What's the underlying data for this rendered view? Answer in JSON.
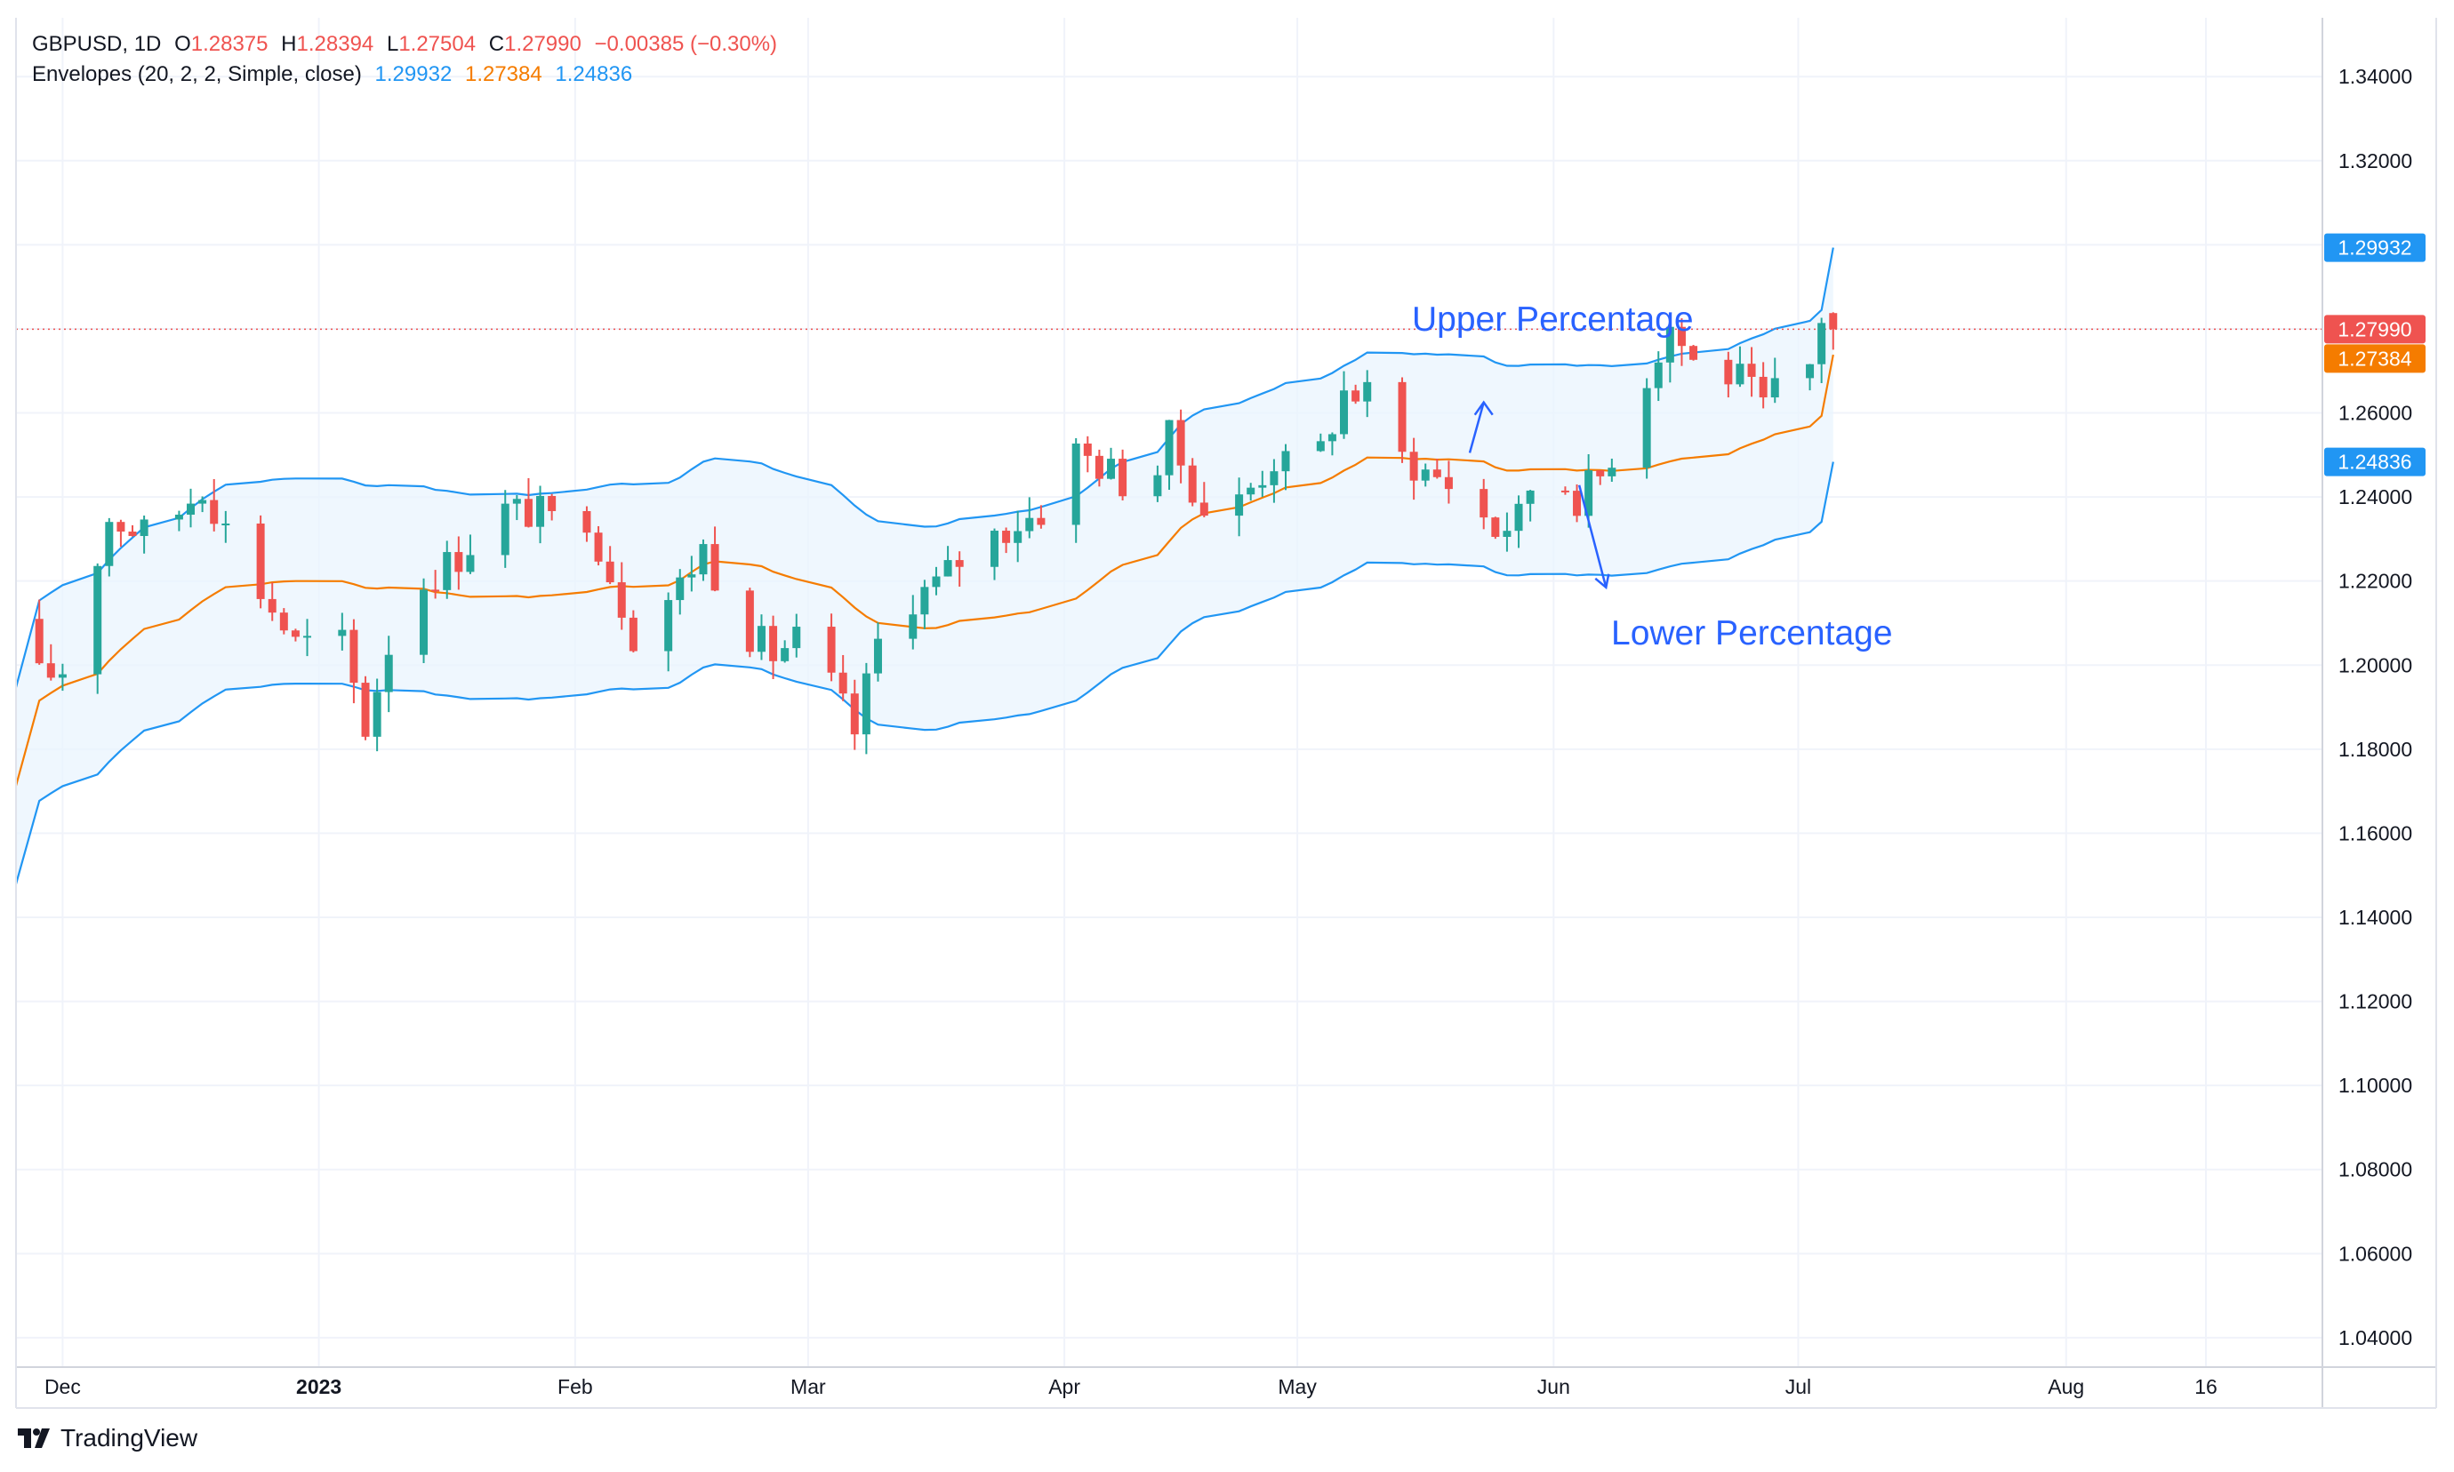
{
  "legend": {
    "symbol": "GBPUSD",
    "interval": "1D",
    "o_label": "O",
    "o": "1.28375",
    "h_label": "H",
    "h": "1.28394",
    "l_label": "L",
    "l": "1.27504",
    "c_label": "C",
    "c": "1.27990",
    "change": "−0.00385 (−0.30%)",
    "indicator": "Envelopes (20, 2, 2, Simple, close)",
    "upper": "1.29932",
    "mid": "1.27384",
    "lower": "1.24836"
  },
  "branding": {
    "name": "TradingView"
  },
  "colors": {
    "up": "#26a69a",
    "down": "#ef5350",
    "band": "#2196f3",
    "basis": "#f57c00",
    "fill": "#eaf4fd",
    "annotation": "#2962ff",
    "grid": "#f0f3fa",
    "text": "#131722"
  },
  "chart_data": {
    "type": "candlestick",
    "title": "GBPUSD, 1D",
    "ylim": [
      1.033,
      1.354
    ],
    "y_ticks": [
      "1.34000",
      "1.32000",
      "1.30000",
      "1.28000",
      "1.26000",
      "1.24000",
      "1.22000",
      "1.20000",
      "1.18000",
      "1.16000",
      "1.14000",
      "1.12000",
      "1.10000",
      "1.08000",
      "1.06000",
      "1.04000"
    ],
    "x_ticks": [
      {
        "label": "Dec",
        "day": 2
      },
      {
        "label": "2023",
        "day": 24
      },
      {
        "label": "Feb",
        "day": 46
      },
      {
        "label": "Mar",
        "day": 66
      },
      {
        "label": "Apr",
        "day": 88
      },
      {
        "label": "May",
        "day": 108
      },
      {
        "label": "Jun",
        "day": 130
      },
      {
        "label": "Jul",
        "day": 151
      },
      {
        "label": "Aug",
        "day": 174
      },
      {
        "label": "16",
        "day": 186
      }
    ],
    "x_range_days": [
      -2,
      196
    ],
    "price_tags": [
      {
        "name": "envelope-upper",
        "value": 1.29932,
        "label": "1.29932",
        "color": "#2196f3"
      },
      {
        "name": "last-close",
        "value": 1.2799,
        "label": "1.27990",
        "color": "#ef5350"
      },
      {
        "name": "envelope-basis",
        "value": 1.27384,
        "label": "1.27384",
        "color": "#f57c00"
      },
      {
        "name": "envelope-lower",
        "value": 1.24836,
        "label": "1.24836",
        "color": "#2196f3"
      }
    ],
    "last_price": 1.2799,
    "envelope": {
      "period": 20,
      "upper_pct": 2,
      "lower_pct": 2,
      "type": "Simple",
      "source": "close"
    },
    "anchors": [
      [
        -1,
        1.1959
      ],
      [
        2,
        1.199
      ],
      [
        6,
        1.235
      ],
      [
        10,
        1.23
      ],
      [
        14,
        1.243
      ],
      [
        18,
        1.222
      ],
      [
        22,
        1.205
      ],
      [
        26,
        1.205
      ],
      [
        28,
        1.185
      ],
      [
        31,
        1.215
      ],
      [
        34,
        1.222
      ],
      [
        36,
        1.226
      ],
      [
        40,
        1.237
      ],
      [
        43,
        1.236
      ],
      [
        45,
        1.232
      ],
      [
        47,
        1.236
      ],
      [
        49,
        1.222
      ],
      [
        51,
        1.2075
      ],
      [
        55,
        1.219
      ],
      [
        57,
        1.228
      ],
      [
        60,
        1.21
      ],
      [
        63,
        1.2025
      ],
      [
        65,
        1.206
      ],
      [
        68,
        1.195
      ],
      [
        70,
        1.184
      ],
      [
        72,
        1.2055
      ],
      [
        74,
        1.215
      ],
      [
        77,
        1.219
      ],
      [
        80,
        1.228
      ],
      [
        84,
        1.234
      ],
      [
        87,
        1.238
      ],
      [
        89,
        1.251
      ],
      [
        92,
        1.246
      ],
      [
        95,
        1.239
      ],
      [
        97,
        1.254
      ],
      [
        100,
        1.237
      ],
      [
        103,
        1.239
      ],
      [
        106,
        1.249
      ],
      [
        109,
        1.244
      ],
      [
        112,
        1.265
      ],
      [
        114,
        1.264
      ],
      [
        116,
        1.251
      ],
      [
        119,
        1.246
      ],
      [
        122,
        1.242
      ],
      [
        125,
        1.232
      ],
      [
        127,
        1.235
      ],
      [
        129,
        1.25
      ],
      [
        132,
        1.24
      ],
      [
        134,
        1.245
      ],
      [
        136,
        1.256
      ],
      [
        139,
        1.275
      ],
      [
        140,
        1.281
      ],
      [
        142,
        1.272
      ],
      [
        144,
        1.27
      ],
      [
        146,
        1.268
      ],
      [
        148,
        1.261
      ],
      [
        150,
        1.269
      ],
      [
        152,
        1.271
      ],
      [
        153,
        1.283
      ],
      [
        154,
        1.2799
      ]
    ],
    "candles": [],
    "envelope_upper": [],
    "envelope_basis": [],
    "envelope_lower": [],
    "annotations": [
      {
        "name": "upper-percentage-label",
        "text": "Upper Percentage",
        "pointer_day": 124,
        "pointer_value": 1.2625
      },
      {
        "name": "lower-percentage-label",
        "text": "Lower Percentage",
        "pointer_day": 134.5,
        "pointer_value": 1.2185
      }
    ]
  }
}
